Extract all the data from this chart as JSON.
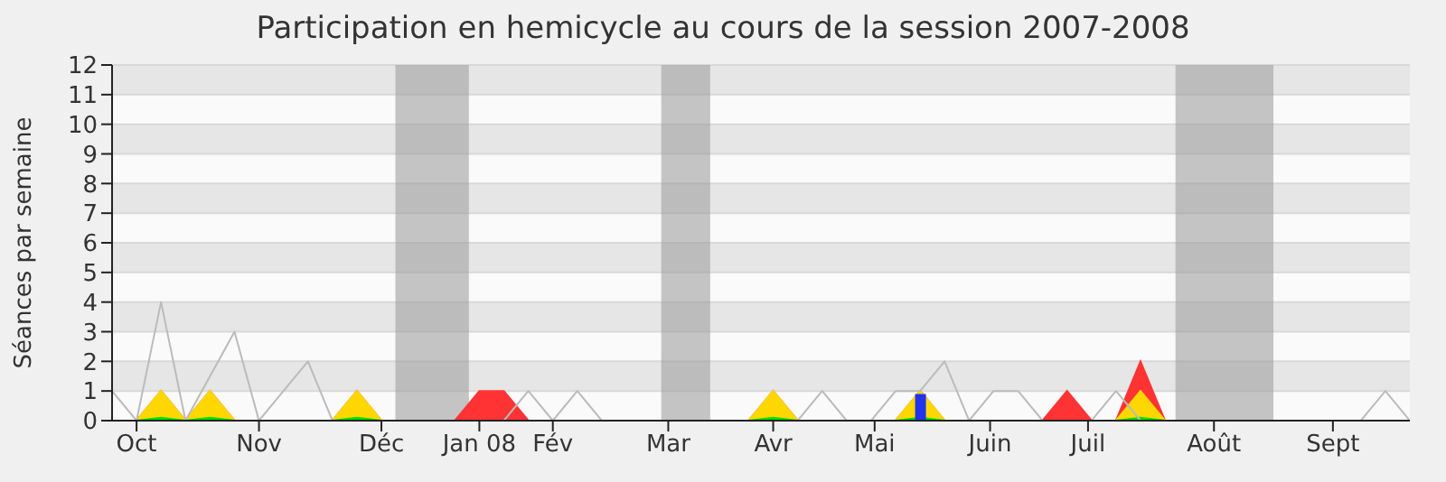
{
  "chart_data": {
    "type": "area",
    "title": "Participation en hemicycle au cours de la session 2007-2008",
    "ylabel": "Séances par semaine",
    "x": [
      "2007-09-24",
      "2007-10-01",
      "2007-10-08",
      "2007-10-15",
      "2007-10-22",
      "2007-10-29",
      "2007-11-05",
      "2007-11-12",
      "2007-11-19",
      "2007-11-26",
      "2007-12-03",
      "2007-12-10",
      "2007-12-17",
      "2007-12-24",
      "2007-12-31",
      "2008-01-07",
      "2008-01-14",
      "2008-01-21",
      "2008-01-28",
      "2008-02-04",
      "2008-02-11",
      "2008-02-18",
      "2008-02-25",
      "2008-03-03",
      "2008-03-10",
      "2008-03-17",
      "2008-03-24",
      "2008-03-31",
      "2008-04-07",
      "2008-04-14",
      "2008-04-21",
      "2008-04-28",
      "2008-05-05",
      "2008-05-12",
      "2008-05-19",
      "2008-05-26",
      "2008-06-02",
      "2008-06-09",
      "2008-06-16",
      "2008-06-23",
      "2008-06-30",
      "2008-07-07",
      "2008-07-14",
      "2008-07-21",
      "2008-07-28",
      "2008-08-04",
      "2008-08-11",
      "2008-08-18",
      "2008-08-25",
      "2008-09-01",
      "2008-09-08",
      "2008-09-15",
      "2008-09-22",
      "2008-09-29"
    ],
    "series": [
      {
        "type": "line",
        "color": "#bbbbbb",
        "values": [
          1,
          0,
          4,
          0,
          1.5,
          3,
          0,
          1,
          2,
          0,
          0,
          0,
          0,
          0,
          0,
          0,
          0,
          1,
          0,
          1,
          0,
          0,
          0,
          0,
          0,
          0,
          0,
          0,
          0,
          1,
          0,
          0,
          1,
          1,
          2,
          0,
          1,
          1,
          0,
          0,
          0,
          1,
          0,
          0,
          0,
          0,
          0,
          0,
          0,
          0,
          0,
          0,
          1,
          0
        ]
      },
      {
        "color": "#ff3333",
        "values": [
          0,
          0,
          1,
          0,
          1,
          0,
          0,
          0,
          0,
          0,
          1,
          0,
          0,
          0,
          0,
          1,
          1,
          0,
          0,
          0,
          0,
          0,
          0,
          0,
          0,
          0,
          0,
          1,
          0,
          0,
          0,
          0,
          0,
          1,
          0,
          0,
          0,
          0,
          0,
          1,
          0,
          0,
          2,
          0,
          0,
          0,
          0,
          0,
          0,
          0,
          0,
          0,
          0,
          0
        ]
      },
      {
        "color": "#ffd700",
        "values": [
          0,
          0,
          1,
          0,
          1,
          0,
          0,
          0,
          0,
          0,
          1,
          0,
          0,
          0,
          0,
          0,
          0,
          0,
          0,
          0,
          0,
          0,
          0,
          0,
          0,
          0,
          0,
          1,
          0,
          0,
          0,
          0,
          0,
          1,
          0,
          0,
          0,
          0,
          0,
          0,
          0,
          0,
          1,
          0,
          0,
          0,
          0,
          0,
          0,
          0,
          0,
          0,
          0,
          0
        ]
      },
      {
        "color": "#00e000",
        "values": [
          0,
          0,
          0.1,
          0,
          0.1,
          0,
          0,
          0,
          0,
          0,
          0.1,
          0,
          0,
          0,
          0,
          0,
          0,
          0,
          0,
          0,
          0,
          0,
          0,
          0,
          0,
          0,
          0,
          0.1,
          0,
          0,
          0,
          0,
          0,
          0.1,
          0,
          0,
          0,
          0,
          0,
          0,
          0,
          0,
          0.1,
          0,
          0,
          0,
          0,
          0,
          0,
          0,
          0,
          0,
          0,
          0
        ]
      },
      {
        "type": "bar",
        "color": "#2233ee",
        "values": [
          null,
          null,
          null,
          null,
          null,
          null,
          null,
          null,
          null,
          null,
          null,
          null,
          null,
          null,
          null,
          null,
          null,
          null,
          null,
          null,
          null,
          null,
          null,
          null,
          null,
          null,
          null,
          null,
          null,
          null,
          null,
          null,
          null,
          0.9,
          null,
          null,
          null,
          null,
          null,
          null,
          null,
          null,
          null,
          null,
          null,
          null,
          null,
          null,
          null,
          null,
          null,
          null,
          null,
          null
        ]
      }
    ],
    "xlim": [
      "2007-09-24",
      "2008-09-29"
    ],
    "xticks": [
      {
        "value": "2007-10-01",
        "label": "Oct"
      },
      {
        "value": "2007-11-05",
        "label": "Nov"
      },
      {
        "value": "2007-12-10",
        "label": "Déc"
      },
      {
        "value": "2008-01-07",
        "label": "Jan 08"
      },
      {
        "value": "2008-01-28",
        "label": "Fév"
      },
      {
        "value": "2008-03-01",
        "label": "Mar"
      },
      {
        "value": "2008-03-31",
        "label": "Avr"
      },
      {
        "value": "2008-04-29",
        "label": "Mai"
      },
      {
        "value": "2008-06-01",
        "label": "Juin"
      },
      {
        "value": "2008-06-29",
        "label": "Juil"
      },
      {
        "value": "2008-08-04",
        "label": "Août"
      },
      {
        "value": "2008-09-07",
        "label": "Sept"
      }
    ],
    "ylim": [
      0,
      12
    ],
    "yticks": [
      0,
      1,
      2,
      3,
      4,
      5,
      6,
      7,
      8,
      9,
      10,
      11,
      12
    ],
    "bands": [
      {
        "axis": "x",
        "from": "2007-12-14",
        "to": "2008-01-04",
        "color": "#a0a0a0"
      },
      {
        "axis": "x",
        "from": "2008-02-28",
        "to": "2008-03-13",
        "color": "#a0a0a0"
      },
      {
        "axis": "x",
        "from": "2008-07-24",
        "to": "2008-08-21",
        "color": "#a0a0a0"
      }
    ],
    "grid": "y",
    "legend": false
  }
}
